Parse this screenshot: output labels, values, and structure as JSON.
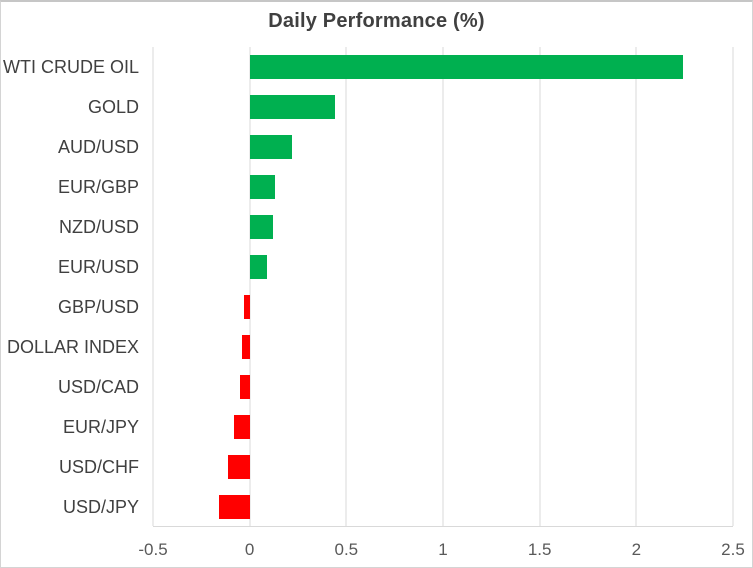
{
  "window": {
    "background": "#ffffff",
    "border_color": "#d4d4d4"
  },
  "chart_data": {
    "type": "bar",
    "orientation": "horizontal",
    "title": "Daily Performance (%)",
    "categories": [
      "WTI CRUDE OIL",
      "GOLD",
      "AUD/USD",
      "EUR/GBP",
      "NZD/USD",
      "EUR/USD",
      "GBP/USD",
      "DOLLAR INDEX",
      "USD/CAD",
      "EUR/JPY",
      "USD/CHF",
      "USD/JPY"
    ],
    "values": [
      2.24,
      0.44,
      0.22,
      0.13,
      0.12,
      0.09,
      -0.03,
      -0.04,
      -0.05,
      -0.08,
      -0.11,
      -0.16
    ],
    "xlabel": "",
    "ylabel": "",
    "xlim": [
      -0.5,
      2.5
    ],
    "xticks": [
      -0.5,
      0,
      0.5,
      1,
      1.5,
      2,
      2.5
    ],
    "xtick_labels": [
      "-0.5",
      "0",
      "0.5",
      "1",
      "1.5",
      "2",
      "2.5"
    ],
    "grid": true,
    "legend": false,
    "colors": {
      "positive": "#00B050",
      "negative": "#FF0000",
      "gridline": "#d9d9d9",
      "title_text": "#404040",
      "category_text": "#404040",
      "tick_text": "#595959"
    }
  }
}
